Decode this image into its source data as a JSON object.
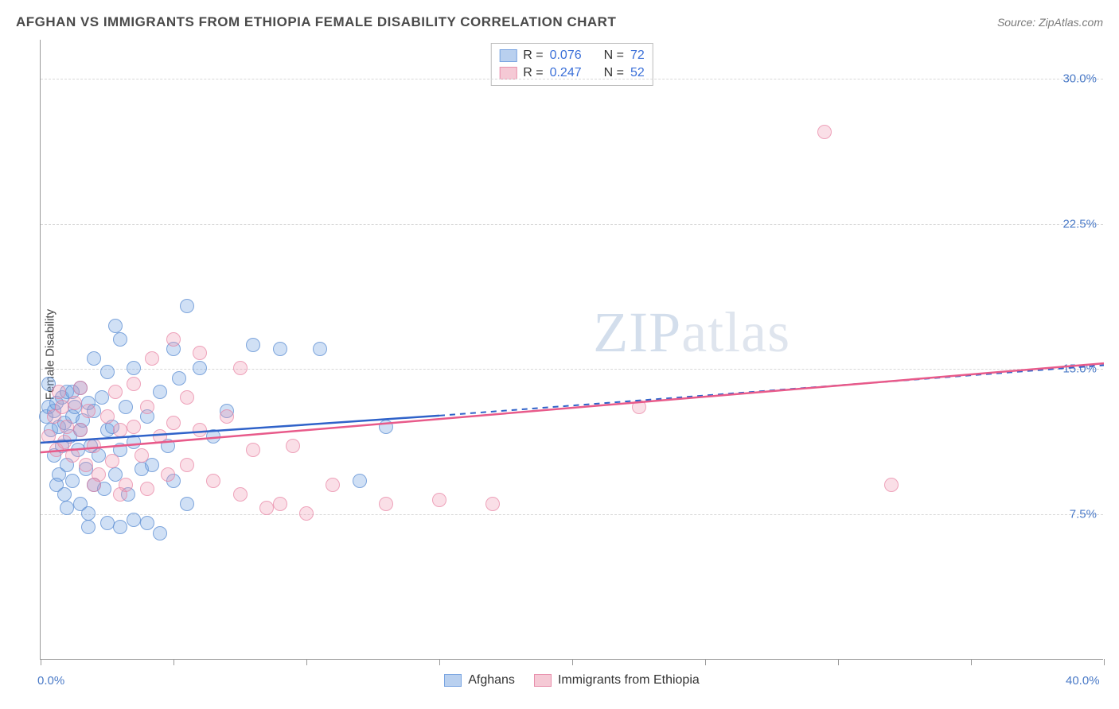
{
  "title": "AFGHAN VS IMMIGRANTS FROM ETHIOPIA FEMALE DISABILITY CORRELATION CHART",
  "source": "Source: ZipAtlas.com",
  "ylabel": "Female Disability",
  "watermark_a": "ZIP",
  "watermark_b": "atlas",
  "chart": {
    "type": "scatter",
    "xlim": [
      0,
      40
    ],
    "ylim": [
      0,
      32
    ],
    "x_ticks": [
      0,
      5,
      10,
      15,
      20,
      25,
      30,
      35,
      40
    ],
    "x_tick_labels_shown": {
      "0": "0.0%",
      "40": "40.0%"
    },
    "y_gridlines": [
      7.5,
      15.0,
      22.5,
      30.0
    ],
    "y_tick_labels": {
      "7.5": "7.5%",
      "15.0": "15.0%",
      "22.5": "22.5%",
      "30.0": "30.0%"
    },
    "background_color": "#ffffff",
    "grid_color": "#d8d8d8",
    "axis_color": "#999999",
    "label_color": "#4a7ac7",
    "series": [
      {
        "key": "afghans",
        "label": "Afghans",
        "color_fill": "rgba(120,165,225,0.35)",
        "color_stroke": "rgba(90,140,210,0.7)",
        "swatch_fill": "#b9d0ef",
        "swatch_border": "#7aa5e1",
        "R": "0.076",
        "N": "72",
        "trend": {
          "x0": 0,
          "y0": 11.2,
          "x1": 15,
          "y1": 12.6,
          "x2": 40,
          "y2": 15.2,
          "color": "#2f62c9",
          "width": 2.5
        },
        "points": [
          [
            0.2,
            12.5
          ],
          [
            0.3,
            13.0
          ],
          [
            0.4,
            11.8
          ],
          [
            0.5,
            12.8
          ],
          [
            0.5,
            10.5
          ],
          [
            0.6,
            13.2
          ],
          [
            0.7,
            12.0
          ],
          [
            0.7,
            9.5
          ],
          [
            0.8,
            13.5
          ],
          [
            0.8,
            11.0
          ],
          [
            0.9,
            12.2
          ],
          [
            1.0,
            13.8
          ],
          [
            1.0,
            10.0
          ],
          [
            1.1,
            11.5
          ],
          [
            1.2,
            12.5
          ],
          [
            1.2,
            9.2
          ],
          [
            1.3,
            13.0
          ],
          [
            1.4,
            10.8
          ],
          [
            1.5,
            11.8
          ],
          [
            1.5,
            8.0
          ],
          [
            1.6,
            12.3
          ],
          [
            1.7,
            9.8
          ],
          [
            1.8,
            13.2
          ],
          [
            1.8,
            7.5
          ],
          [
            1.9,
            11.0
          ],
          [
            2.0,
            12.8
          ],
          [
            2.0,
            9.0
          ],
          [
            2.2,
            10.5
          ],
          [
            2.3,
            13.5
          ],
          [
            2.4,
            8.8
          ],
          [
            2.5,
            11.8
          ],
          [
            2.5,
            7.0
          ],
          [
            2.7,
            12.0
          ],
          [
            2.8,
            9.5
          ],
          [
            3.0,
            10.8
          ],
          [
            3.0,
            6.8
          ],
          [
            3.2,
            13.0
          ],
          [
            3.3,
            8.5
          ],
          [
            3.5,
            11.2
          ],
          [
            3.5,
            7.2
          ],
          [
            3.8,
            9.8
          ],
          [
            4.0,
            12.5
          ],
          [
            4.0,
            7.0
          ],
          [
            4.2,
            10.0
          ],
          [
            4.5,
            13.8
          ],
          [
            4.5,
            6.5
          ],
          [
            4.8,
            11.0
          ],
          [
            5.0,
            16.0
          ],
          [
            5.0,
            9.2
          ],
          [
            5.2,
            14.5
          ],
          [
            5.5,
            18.2
          ],
          [
            5.5,
            8.0
          ],
          [
            1.5,
            14.0
          ],
          [
            2.0,
            15.5
          ],
          [
            2.5,
            14.8
          ],
          [
            3.0,
            16.5
          ],
          [
            2.8,
            17.2
          ],
          [
            3.5,
            15.0
          ],
          [
            0.3,
            14.2
          ],
          [
            0.6,
            9.0
          ],
          [
            0.9,
            8.5
          ],
          [
            1.2,
            13.8
          ],
          [
            6.0,
            15.0
          ],
          [
            6.5,
            11.5
          ],
          [
            7.0,
            12.8
          ],
          [
            8.0,
            16.2
          ],
          [
            9.0,
            16.0
          ],
          [
            10.5,
            16.0
          ],
          [
            12.0,
            9.2
          ],
          [
            13.0,
            12.0
          ],
          [
            1.0,
            7.8
          ],
          [
            1.8,
            6.8
          ]
        ]
      },
      {
        "key": "ethiopia",
        "label": "Immigrants from Ethiopia",
        "color_fill": "rgba(240,150,175,0.3)",
        "color_stroke": "rgba(230,120,155,0.6)",
        "swatch_fill": "#f5c9d5",
        "swatch_border": "#e88fac",
        "R": "0.247",
        "N": "52",
        "trend": {
          "x0": 0,
          "y0": 10.7,
          "x1": 40,
          "y1": 15.3,
          "color": "#e85a8a",
          "width": 2.5
        },
        "points": [
          [
            0.3,
            11.5
          ],
          [
            0.5,
            12.5
          ],
          [
            0.6,
            10.8
          ],
          [
            0.8,
            13.0
          ],
          [
            0.9,
            11.2
          ],
          [
            1.0,
            12.0
          ],
          [
            1.2,
            10.5
          ],
          [
            1.3,
            13.2
          ],
          [
            1.5,
            11.8
          ],
          [
            1.7,
            10.0
          ],
          [
            1.8,
            12.8
          ],
          [
            2.0,
            11.0
          ],
          [
            2.2,
            9.5
          ],
          [
            2.5,
            12.5
          ],
          [
            2.7,
            10.2
          ],
          [
            3.0,
            11.8
          ],
          [
            3.2,
            9.0
          ],
          [
            3.5,
            12.0
          ],
          [
            3.8,
            10.5
          ],
          [
            4.0,
            8.8
          ],
          [
            4.5,
            11.5
          ],
          [
            4.8,
            9.5
          ],
          [
            5.0,
            12.2
          ],
          [
            5.5,
            10.0
          ],
          [
            6.0,
            11.8
          ],
          [
            6.5,
            9.2
          ],
          [
            7.0,
            12.5
          ],
          [
            7.5,
            8.5
          ],
          [
            8.0,
            10.8
          ],
          [
            8.5,
            7.8
          ],
          [
            9.0,
            8.0
          ],
          [
            9.5,
            11.0
          ],
          [
            10.0,
            7.5
          ],
          [
            11.0,
            9.0
          ],
          [
            4.2,
            15.5
          ],
          [
            5.0,
            16.5
          ],
          [
            6.0,
            15.8
          ],
          [
            7.5,
            15.0
          ],
          [
            3.5,
            14.2
          ],
          [
            2.8,
            13.8
          ],
          [
            1.5,
            14.0
          ],
          [
            0.7,
            13.8
          ],
          [
            13.0,
            8.0
          ],
          [
            15.0,
            8.2
          ],
          [
            17.0,
            8.0
          ],
          [
            22.5,
            13.0
          ],
          [
            29.5,
            27.2
          ],
          [
            32.0,
            9.0
          ],
          [
            4.0,
            13.0
          ],
          [
            5.5,
            13.5
          ],
          [
            2.0,
            9.0
          ],
          [
            3.0,
            8.5
          ]
        ]
      }
    ]
  },
  "legend_top": {
    "r_label": "R =",
    "n_label": "N ="
  }
}
